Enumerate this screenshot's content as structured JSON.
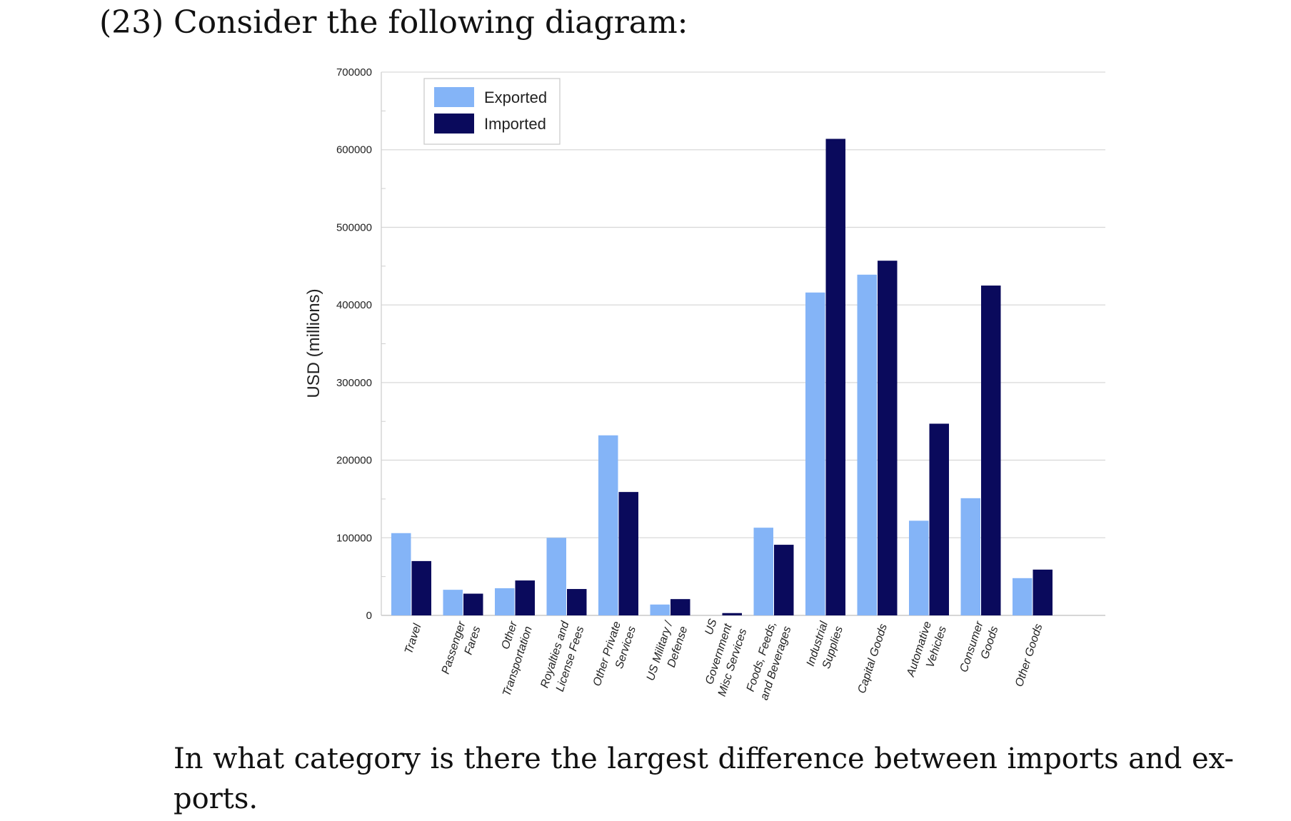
{
  "question": {
    "number": "(23)",
    "intro": "Consider the following diagram:",
    "text_line1": "In what category is there the largest difference between imports and ex-",
    "text_line2": "ports."
  },
  "colors": {
    "exported": "#84B4F7",
    "imported": "#0A0A5C",
    "grid": "#d9d9d9",
    "axis_text": "#222222"
  },
  "chart_data": {
    "type": "bar",
    "title": "",
    "xlabel": "",
    "ylabel": "USD (millions)",
    "ylim": [
      0,
      700000
    ],
    "yticks": [
      "0",
      "100000",
      "200000",
      "300000",
      "400000",
      "500000",
      "600000",
      "700000"
    ],
    "grid": true,
    "legend_position": "top-left",
    "categories": [
      [
        "Travel"
      ],
      [
        "Passenger",
        "Fares"
      ],
      [
        "Other",
        "Transportation"
      ],
      [
        "Royalties and",
        "License Fees"
      ],
      [
        "Other Private",
        "Services"
      ],
      [
        "US Military /",
        "Defense"
      ],
      [
        "US",
        "Government",
        "Misc Services"
      ],
      [
        "Foods, Feeds,",
        "and Beverages"
      ],
      [
        "Industrial",
        "Supplies"
      ],
      [
        "Capital Goods"
      ],
      [
        "Automative",
        "Vehicles"
      ],
      [
        "Consumer",
        "Goods"
      ],
      [
        "Other Goods"
      ]
    ],
    "series": [
      {
        "name": "Exported",
        "values": [
          106000,
          33000,
          35000,
          100000,
          232000,
          14000,
          0,
          113000,
          416000,
          439000,
          122000,
          151000,
          48000
        ]
      },
      {
        "name": "Imported",
        "values": [
          70000,
          28000,
          45000,
          34000,
          159000,
          21000,
          3000,
          91000,
          614000,
          457000,
          247000,
          425000,
          59000
        ]
      }
    ]
  }
}
